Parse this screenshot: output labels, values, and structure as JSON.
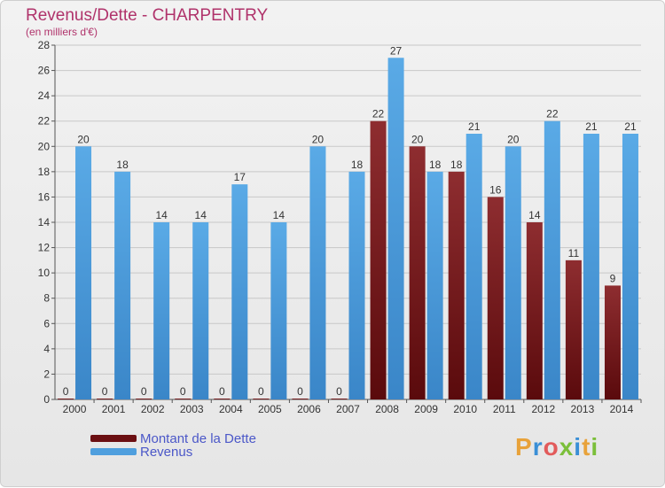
{
  "header": {
    "title": "Revenus/Dette - CHARPENTRY",
    "subtitle": "(en milliers d'€)"
  },
  "chart_data": {
    "type": "bar",
    "categories": [
      "2000",
      "2001",
      "2002",
      "2003",
      "2004",
      "2005",
      "2006",
      "2007",
      "2008",
      "2009",
      "2010",
      "2011",
      "2012",
      "2013",
      "2014"
    ],
    "series": [
      {
        "name": "Montant de la Dette",
        "color": "#7a1d20",
        "values": [
          0,
          0,
          0,
          0,
          0,
          0,
          0,
          0,
          22,
          20,
          18,
          16,
          14,
          11,
          9
        ]
      },
      {
        "name": "Revenus",
        "color": "#4f9fde",
        "values": [
          20,
          18,
          14,
          14,
          17,
          14,
          20,
          18,
          27,
          18,
          21,
          20,
          22,
          21,
          21
        ]
      }
    ],
    "yticks": [
      0,
      2,
      4,
      6,
      8,
      10,
      12,
      14,
      16,
      18,
      20,
      22,
      24,
      26,
      28
    ],
    "ylim": [
      0,
      28
    ],
    "grid": true,
    "legend": "bottom-left"
  },
  "legend": {
    "items": [
      {
        "label": "Montant de la Dette",
        "color": "#6b0f12"
      },
      {
        "label": "Revenus",
        "color": "#4f9fde"
      }
    ]
  },
  "logo": {
    "letters": [
      "P",
      "r",
      "o",
      "x",
      "i",
      "t",
      "i"
    ],
    "colors": [
      "#e8a23a",
      "#3a8fd6",
      "#e25b5b",
      "#7bbf3a",
      "#3a8fd6",
      "#e8a23a",
      "#7bbf3a"
    ]
  }
}
